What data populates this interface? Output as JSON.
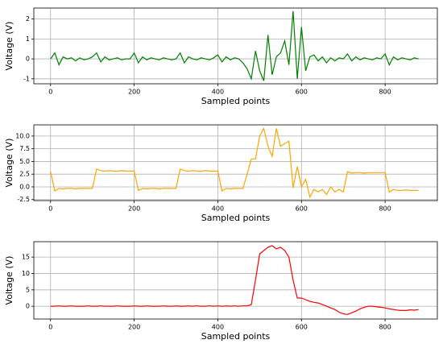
{
  "chart_data": [
    {
      "type": "line",
      "xlabel": "Sampled points",
      "ylabel": "Voltage (V)",
      "color": "#008000",
      "grid": true,
      "xlim": [
        -40,
        925
      ],
      "ylim": [
        -1.25,
        2.55
      ],
      "xticks": [
        0,
        200,
        400,
        600,
        800
      ],
      "yticks": [
        -1,
        0,
        1,
        2
      ],
      "x": [
        0,
        10,
        20,
        30,
        40,
        50,
        60,
        70,
        80,
        90,
        100,
        110,
        120,
        130,
        140,
        150,
        160,
        170,
        180,
        190,
        200,
        210,
        220,
        230,
        240,
        250,
        260,
        270,
        280,
        290,
        300,
        310,
        320,
        330,
        340,
        350,
        360,
        370,
        380,
        390,
        400,
        410,
        420,
        430,
        440,
        450,
        460,
        470,
        480,
        490,
        500,
        510,
        520,
        530,
        540,
        550,
        560,
        570,
        580,
        590,
        600,
        610,
        620,
        630,
        640,
        650,
        660,
        670,
        680,
        690,
        700,
        710,
        720,
        730,
        740,
        750,
        760,
        770,
        780,
        790,
        800,
        810,
        820,
        830,
        840,
        850,
        860,
        870,
        880
      ],
      "values": [
        0,
        0.3,
        -0.3,
        0.1,
        0,
        0.05,
        -0.1,
        0.05,
        -0.05,
        0,
        0.1,
        0.3,
        -0.15,
        0.1,
        -0.05,
        0,
        0.05,
        -0.05,
        0,
        0,
        0.3,
        -0.2,
        0.1,
        -0.05,
        0.05,
        0,
        -0.05,
        0.05,
        0,
        -0.05,
        0,
        0.3,
        -0.2,
        0.1,
        0,
        -0.05,
        0.05,
        0,
        -0.05,
        0.05,
        0.2,
        -0.15,
        0.1,
        -0.05,
        0.05,
        0,
        -0.2,
        -0.5,
        -1.0,
        0.4,
        -0.6,
        -1.1,
        1.2,
        -0.8,
        0.1,
        0.3,
        0.9,
        -0.3,
        2.4,
        -1.0,
        1.6,
        -0.6,
        0.1,
        0.2,
        -0.1,
        0.1,
        -0.2,
        0.05,
        -0.1,
        0.05,
        0,
        0.25,
        -0.1,
        0.1,
        -0.05,
        0.05,
        0,
        -0.05,
        0.05,
        0,
        0.25,
        -0.3,
        0.1,
        -0.05,
        0.05,
        0,
        -0.05,
        0.05,
        0
      ]
    },
    {
      "type": "line",
      "xlabel": "Sampled points",
      "ylabel": "Voltage (V)",
      "color": "#ffa500",
      "grid": true,
      "xlim": [
        -40,
        925
      ],
      "ylim": [
        -2.7,
        12.2
      ],
      "xticks": [
        0,
        200,
        400,
        600,
        800
      ],
      "yticks": [
        -2.5,
        {
          "value": 0,
          "label": "0.0"
        },
        2.5,
        {
          "value": 5,
          "label": "5.0"
        },
        7.5,
        {
          "value": 10,
          "label": "10.0"
        }
      ],
      "x": [
        0,
        10,
        20,
        30,
        40,
        50,
        60,
        70,
        80,
        90,
        100,
        110,
        120,
        130,
        140,
        150,
        160,
        170,
        180,
        190,
        200,
        210,
        220,
        230,
        240,
        250,
        260,
        270,
        280,
        290,
        300,
        310,
        320,
        330,
        340,
        350,
        360,
        370,
        380,
        390,
        400,
        410,
        420,
        430,
        440,
        450,
        460,
        470,
        480,
        490,
        500,
        510,
        520,
        530,
        540,
        550,
        560,
        570,
        580,
        590,
        600,
        610,
        620,
        630,
        640,
        650,
        660,
        670,
        680,
        690,
        700,
        710,
        720,
        730,
        740,
        750,
        760,
        770,
        780,
        790,
        800,
        810,
        820,
        830,
        840,
        850,
        860,
        870,
        880
      ],
      "values": [
        3,
        -0.8,
        -0.3,
        -0.4,
        -0.3,
        -0.3,
        -0.4,
        -0.3,
        -0.3,
        -0.3,
        -0.3,
        3.5,
        3.2,
        3.1,
        3.2,
        3.1,
        3.1,
        3.2,
        3.1,
        3.1,
        3.1,
        -0.7,
        -0.3,
        -0.4,
        -0.3,
        -0.3,
        -0.4,
        -0.3,
        -0.3,
        -0.3,
        -0.3,
        3.5,
        3.2,
        3.1,
        3.2,
        3.1,
        3.1,
        3.2,
        3.1,
        3.1,
        3.1,
        -0.8,
        -0.3,
        -0.4,
        -0.3,
        -0.3,
        -0.3,
        2.5,
        5.5,
        5.5,
        10,
        11.5,
        8,
        6,
        11.5,
        8,
        8.5,
        9,
        -0.2,
        4,
        0,
        1.5,
        -2,
        -0.5,
        -1,
        -0.5,
        -1.5,
        0,
        -1,
        -0.5,
        -1,
        3,
        2.7,
        2.8,
        2.8,
        2.7,
        2.8,
        2.8,
        2.8,
        2.8,
        2.8,
        -1,
        -0.5,
        -0.7,
        -0.7,
        -0.6,
        -0.7,
        -0.7,
        -0.7
      ]
    },
    {
      "type": "line",
      "xlabel": "Sampled points",
      "ylabel": "Voltage (V)",
      "color": "#ff0000",
      "grid": true,
      "xlim": [
        -40,
        925
      ],
      "ylim": [
        -3.9,
        19.7
      ],
      "xticks": [
        0,
        200,
        400,
        600,
        800
      ],
      "yticks": [
        0,
        5,
        10,
        15
      ],
      "x": [
        0,
        10,
        20,
        30,
        40,
        50,
        60,
        70,
        80,
        90,
        100,
        110,
        120,
        130,
        140,
        150,
        160,
        170,
        180,
        190,
        200,
        210,
        220,
        230,
        240,
        250,
        260,
        270,
        280,
        290,
        300,
        310,
        320,
        330,
        340,
        350,
        360,
        370,
        380,
        390,
        400,
        410,
        420,
        430,
        440,
        450,
        460,
        470,
        480,
        490,
        500,
        510,
        520,
        530,
        540,
        550,
        560,
        570,
        580,
        590,
        600,
        610,
        620,
        630,
        640,
        650,
        660,
        670,
        680,
        690,
        700,
        710,
        720,
        730,
        740,
        750,
        760,
        770,
        780,
        790,
        800,
        810,
        820,
        830,
        840,
        850,
        860,
        870,
        880
      ],
      "values": [
        0,
        0,
        0.1,
        0,
        0,
        0.1,
        0,
        0,
        0,
        0.1,
        0,
        0,
        0.1,
        0,
        0,
        0,
        0.1,
        0,
        0,
        0,
        0.1,
        0,
        0,
        0.1,
        0,
        0,
        0,
        0.1,
        0,
        0,
        0.1,
        0,
        0,
        0.1,
        0,
        0.1,
        0,
        0,
        0.1,
        0,
        0.1,
        0,
        0.1,
        0,
        0.1,
        0,
        0.1,
        0.1,
        0.5,
        8,
        16,
        17,
        18,
        18.5,
        17.5,
        18,
        17,
        15,
        8,
        2.5,
        2.5,
        2,
        1.5,
        1.2,
        1,
        0.5,
        0,
        -0.5,
        -1,
        -1.8,
        -2.3,
        -2.5,
        -2,
        -1.5,
        -0.8,
        -0.3,
        0,
        0,
        -0.2,
        -0.3,
        -0.5,
        -0.8,
        -1,
        -1.2,
        -1.3,
        -1.3,
        -1.1,
        -1.2,
        -1.0
      ]
    }
  ]
}
